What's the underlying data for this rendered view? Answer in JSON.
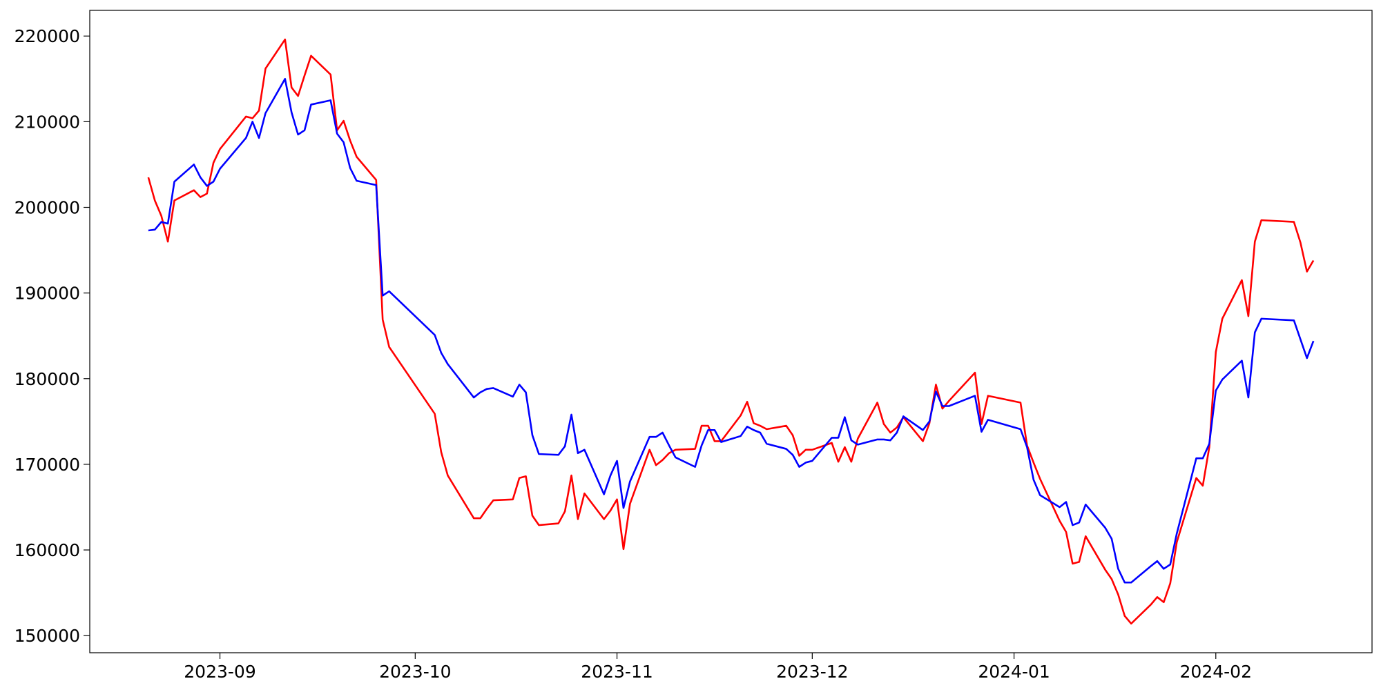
{
  "chart_data": {
    "type": "line",
    "x": [
      -11,
      -10,
      -9,
      -8,
      -7,
      -4,
      -3,
      -2,
      -1,
      0,
      4,
      5,
      6,
      7,
      10,
      11,
      12,
      13,
      14,
      17,
      18,
      19,
      20,
      21,
      24,
      25,
      26,
      33,
      34,
      35,
      39,
      40,
      41,
      42,
      45,
      46,
      47,
      48,
      49,
      52,
      53,
      54,
      55,
      56,
      59,
      60,
      61,
      62,
      63,
      66,
      67,
      68,
      69,
      70,
      73,
      74,
      75,
      76,
      77,
      80,
      81,
      82,
      83,
      84,
      87,
      88,
      89,
      90,
      91,
      94,
      95,
      96,
      97,
      98,
      101,
      102,
      103,
      104,
      105,
      108,
      109,
      110,
      111,
      112,
      116,
      117,
      118,
      123,
      124,
      125,
      126,
      129,
      130,
      131,
      132,
      133,
      136,
      137,
      138,
      139,
      140,
      143,
      144,
      145,
      146,
      147,
      150,
      151,
      152,
      153,
      154,
      157,
      158,
      159,
      160,
      165,
      166,
      167,
      168
    ],
    "series": [
      {
        "color": "#ff0000",
        "values": [
          203500,
          200800,
          199000,
          196000,
          200800,
          202000,
          201200,
          201600,
          205200,
          206800,
          210600,
          210400,
          211300,
          216200,
          219600,
          214000,
          213000,
          215400,
          217700,
          215500,
          209000,
          210100,
          207800,
          205900,
          203200,
          186900,
          183700,
          175900,
          171400,
          168700,
          163700,
          163700,
          164800,
          165800,
          165900,
          168400,
          168600,
          164000,
          162900,
          163100,
          164500,
          168700,
          163600,
          166600,
          163600,
          164600,
          165900,
          160100,
          165400,
          171700,
          169900,
          170500,
          171300,
          171700,
          171800,
          174500,
          174500,
          172700,
          172700,
          175700,
          177300,
          174800,
          174500,
          174100,
          174500,
          173400,
          171000,
          171700,
          171700,
          172500,
          170300,
          172000,
          170300,
          173000,
          177200,
          174700,
          173700,
          174300,
          175500,
          172700,
          174800,
          179300,
          176500,
          177400,
          180700,
          174700,
          178000,
          177200,
          172200,
          170200,
          168300,
          163400,
          162100,
          158400,
          158600,
          161600,
          157700,
          156600,
          154800,
          152300,
          151400,
          153600,
          154500,
          153900,
          156100,
          160900,
          168400,
          167500,
          172000,
          183100,
          187000,
          191500,
          187300,
          196000,
          198500,
          198300,
          195900,
          192500,
          193800
        ]
      },
      {
        "color": "#0000ff",
        "values": [
          197300,
          197400,
          198300,
          198100,
          203000,
          205000,
          203500,
          202500,
          203000,
          204500,
          208100,
          210000,
          208100,
          211000,
          215000,
          211100,
          208500,
          209000,
          212000,
          212500,
          208600,
          207600,
          204600,
          203100,
          202600,
          189700,
          190200,
          185100,
          183000,
          181700,
          177800,
          178400,
          178800,
          178900,
          177900,
          179300,
          178400,
          173400,
          171200,
          171100,
          172100,
          175800,
          171300,
          171700,
          166500,
          168700,
          170400,
          164900,
          168000,
          173200,
          173200,
          173700,
          172200,
          170800,
          169700,
          172200,
          174000,
          174000,
          172600,
          173300,
          174400,
          174000,
          173700,
          172400,
          171800,
          171100,
          169700,
          170200,
          170400,
          173100,
          173100,
          175500,
          172800,
          172300,
          172900,
          172900,
          172800,
          173700,
          175600,
          174000,
          175000,
          178500,
          176800,
          176800,
          178000,
          173800,
          175200,
          174100,
          172000,
          168200,
          166400,
          165000,
          165600,
          162900,
          163200,
          165300,
          162600,
          161300,
          157800,
          156200,
          156200,
          158100,
          158700,
          157800,
          158300,
          161900,
          170700,
          170700,
          172400,
          178600,
          179900,
          182100,
          177800,
          185400,
          187000,
          186800,
          184600,
          182400,
          184400
        ]
      }
    ],
    "xlim": [
      -20,
      177
    ],
    "xticks": [
      {
        "value": 0,
        "label": "2023-09"
      },
      {
        "value": 30,
        "label": "2023-10"
      },
      {
        "value": 61,
        "label": "2023-11"
      },
      {
        "value": 91,
        "label": "2023-12"
      },
      {
        "value": 122,
        "label": "2024-01"
      },
      {
        "value": 153,
        "label": "2024-02"
      }
    ],
    "ylim": [
      148000,
      223000
    ],
    "yticks": [
      150000,
      160000,
      170000,
      180000,
      190000,
      200000,
      210000,
      220000
    ],
    "grid": false
  }
}
